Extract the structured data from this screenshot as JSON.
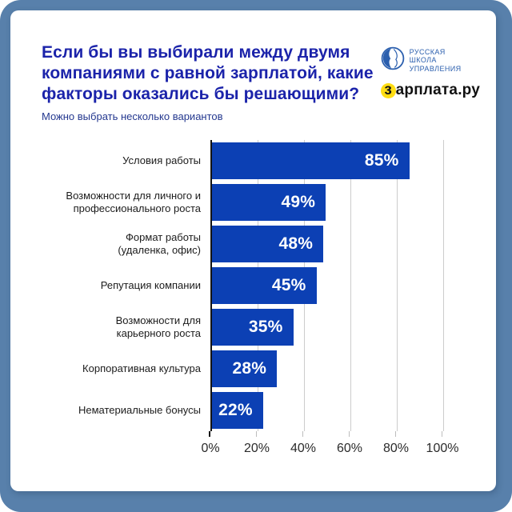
{
  "theme": {
    "frame": "#5880ab",
    "card": "#ffffff",
    "title": "#1b23aa",
    "subtitle": "#24388f",
    "bar": "#0c40b4",
    "bar_label": "#ffffff",
    "category": "#1c1c1c",
    "grid": "#cccccc",
    "axis": "#151515",
    "tick_label": "#2b2b2b",
    "rsu_blue": "#2b5fae",
    "zarplata_yellow": "#ffdd13",
    "zarplata_text": "#111111"
  },
  "header": {
    "title_lines": [
      "Если бы вы выбирали между двумя",
      "компаниями с равной зарплатой, какие",
      "факторы оказались бы решающими?"
    ],
    "subtitle": "Можно выбрать несколько вариантов",
    "logos": {
      "rsu": {
        "icon": "globe-icon",
        "lines": [
          "РУССКАЯ",
          "ШКОЛА",
          "УПРАВЛЕНИЯ"
        ]
      },
      "zarplata": {
        "first_letter": "з",
        "rest": "арплата.ру"
      }
    }
  },
  "chart_data": {
    "type": "bar",
    "orientation": "horizontal",
    "title": "Если бы вы выбирали между двумя компаниями с равной зарплатой, какие факторы оказались бы решающими?",
    "subtitle": "Можно выбрать несколько вариантов",
    "categories": [
      [
        "Условия работы"
      ],
      [
        "Возможности для личного и",
        "профессионального роста"
      ],
      [
        "Формат работы",
        "(удаленка, офис)"
      ],
      [
        "Репутация компании"
      ],
      [
        "Возможности для",
        "карьерного роста"
      ],
      [
        "Корпоративная культура"
      ],
      [
        "Нематериальные бонусы"
      ]
    ],
    "values": [
      85,
      49,
      48,
      45,
      35,
      28,
      22
    ],
    "value_labels": [
      "85%",
      "49%",
      "48%",
      "45%",
      "35%",
      "28%",
      "22%"
    ],
    "xlim": [
      0,
      100
    ],
    "xticks": [
      0,
      20,
      40,
      60,
      80,
      100
    ],
    "xtick_labels": [
      "0%",
      "20%",
      "40%",
      "60%",
      "80%",
      "100%"
    ],
    "grid": true,
    "legend": false,
    "bar_color": "#0c40b4"
  }
}
